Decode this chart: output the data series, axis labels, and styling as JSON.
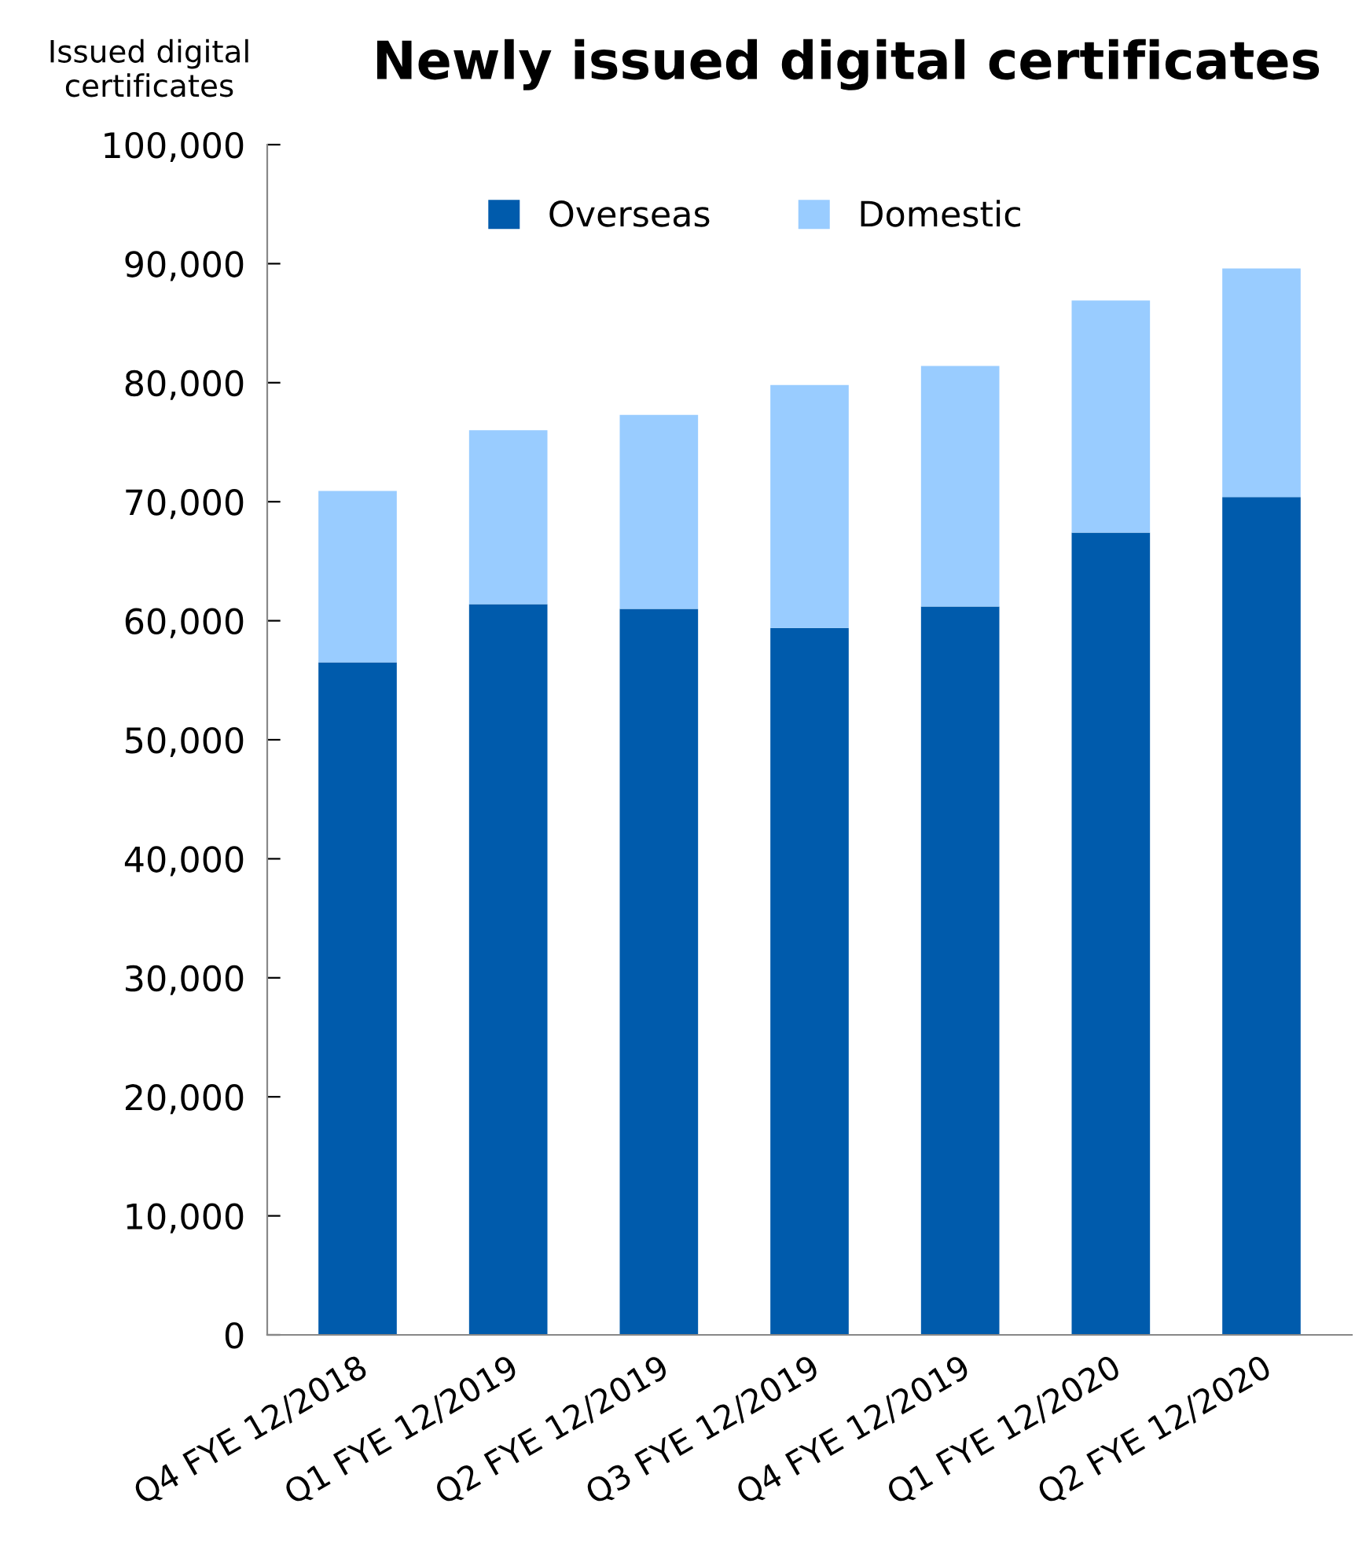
{
  "chart_data": {
    "type": "bar",
    "title": "Newly issued digital certificates",
    "ylabel": "Issued digital\ncertificates",
    "categories": [
      "Q4 FYE 12/2018",
      "Q1 FYE 12/2019",
      "Q2 FYE 12/2019",
      "Q3 FYE 12/2019",
      "Q4 FYE 12/2019",
      "Q1 FYE 12/2020",
      "Q2 FYE 12/2020"
    ],
    "stacked": true,
    "series": [
      {
        "name": "Overseas",
        "color": "#005bac",
        "values": [
          56500,
          61400,
          61000,
          59400,
          61200,
          67400,
          70400
        ]
      },
      {
        "name": "Domestic",
        "color": "#99ccff",
        "values": [
          14400,
          14600,
          16300,
          20400,
          20200,
          19500,
          19200
        ]
      }
    ],
    "ylim": [
      0,
      100000
    ],
    "yticks": [
      0,
      {
        "value": 10000,
        "label": "10,000"
      },
      {
        "value": 20000,
        "label": "20,000"
      },
      {
        "value": 30000,
        "label": "30,000"
      },
      {
        "value": 40000,
        "label": "40,000"
      },
      {
        "value": 50000,
        "label": "50,000"
      },
      {
        "value": 60000,
        "label": "60,000"
      },
      {
        "value": 70000,
        "label": "70,000"
      },
      {
        "value": 80000,
        "label": "80,000"
      },
      {
        "value": 90000,
        "label": "90,000"
      },
      {
        "value": 100000,
        "label": "100,000"
      }
    ],
    "grid": false,
    "legend": "top"
  }
}
